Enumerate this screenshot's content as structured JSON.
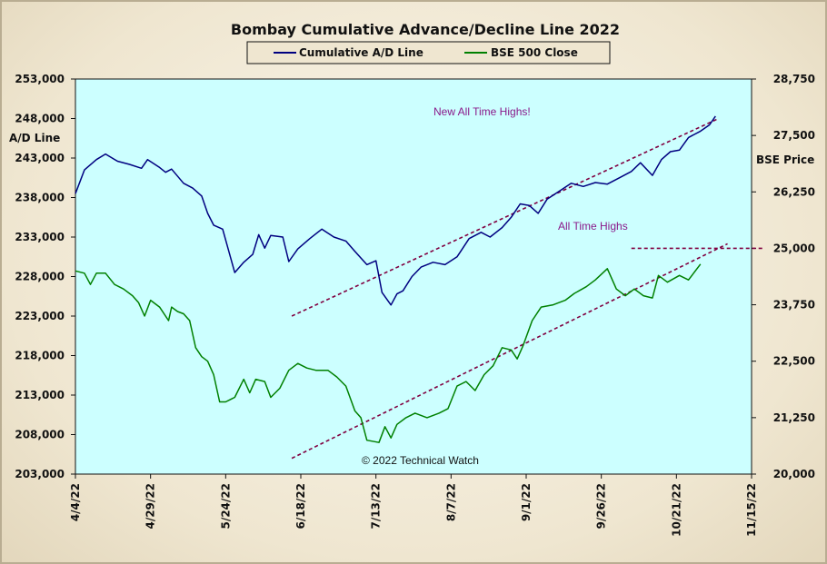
{
  "chart_data": {
    "type": "line",
    "title": "Bombay Cumulative Advance/Decline Line 2022",
    "ylabel": "A/D Line",
    "y2label": "BSE Price",
    "legend": [
      "Cumulative A/D Line",
      "BSE 500 Close"
    ],
    "legend_placement": "top-center",
    "copyright": "© 2022 Technical  Watch",
    "colors": {
      "ad_line": "#000080",
      "bse": "#008000",
      "trend": "#800040",
      "annotation": "#8a1a8a",
      "plot_bg": "#ccffff"
    },
    "x_ticks": [
      "4/4/22",
      "4/29/22",
      "5/24/22",
      "6/18/22",
      "7/13/22",
      "8/7/22",
      "9/1/22",
      "9/26/22",
      "10/21/22",
      "11/15/22"
    ],
    "y_left_ticks": [
      "203,000",
      "208,000",
      "213,000",
      "218,000",
      "223,000",
      "228,000",
      "233,000",
      "238,000",
      "243,000",
      "248,000",
      "253,000"
    ],
    "y_right_ticks": [
      "20,000",
      "21,250",
      "22,500",
      "23,750",
      "25,000",
      "26,250",
      "27,500",
      "28,750"
    ],
    "x_range": [
      "2022-04-04",
      "2022-11-15"
    ],
    "y_left_range": [
      203000,
      253000
    ],
    "y_right_range": [
      20000,
      28750
    ],
    "annotations": [
      "New All Time Highs!",
      "All Time Highs"
    ],
    "series": [
      {
        "name": "Cumulative A/D Line",
        "axis": "left",
        "points": [
          [
            "2022-04-04",
            238500
          ],
          [
            "2022-04-07",
            241500
          ],
          [
            "2022-04-11",
            242800
          ],
          [
            "2022-04-14",
            243500
          ],
          [
            "2022-04-18",
            242600
          ],
          [
            "2022-04-22",
            242200
          ],
          [
            "2022-04-26",
            241700
          ],
          [
            "2022-04-28",
            242800
          ],
          [
            "2022-05-02",
            241800
          ],
          [
            "2022-05-04",
            241200
          ],
          [
            "2022-05-06",
            241600
          ],
          [
            "2022-05-10",
            239800
          ],
          [
            "2022-05-13",
            239200
          ],
          [
            "2022-05-16",
            238200
          ],
          [
            "2022-05-18",
            236000
          ],
          [
            "2022-05-20",
            234500
          ],
          [
            "2022-05-23",
            234000
          ],
          [
            "2022-05-27",
            228500
          ],
          [
            "2022-05-30",
            229800
          ],
          [
            "2022-06-02",
            230800
          ],
          [
            "2022-06-04",
            233300
          ],
          [
            "2022-06-06",
            231600
          ],
          [
            "2022-06-08",
            233200
          ],
          [
            "2022-06-12",
            233000
          ],
          [
            "2022-06-14",
            229900
          ],
          [
            "2022-06-17",
            231500
          ],
          [
            "2022-06-21",
            232800
          ],
          [
            "2022-06-25",
            234000
          ],
          [
            "2022-06-29",
            233000
          ],
          [
            "2022-07-03",
            232500
          ],
          [
            "2022-07-06",
            231200
          ],
          [
            "2022-07-10",
            229500
          ],
          [
            "2022-07-13",
            230000
          ],
          [
            "2022-07-15",
            226000
          ],
          [
            "2022-07-18",
            224400
          ],
          [
            "2022-07-20",
            225800
          ],
          [
            "2022-07-22",
            226200
          ],
          [
            "2022-07-25",
            228000
          ],
          [
            "2022-07-28",
            229200
          ],
          [
            "2022-08-01",
            229800
          ],
          [
            "2022-08-05",
            229500
          ],
          [
            "2022-08-09",
            230500
          ],
          [
            "2022-08-13",
            232800
          ],
          [
            "2022-08-17",
            233600
          ],
          [
            "2022-08-20",
            233000
          ],
          [
            "2022-08-24",
            234200
          ],
          [
            "2022-08-27",
            235500
          ],
          [
            "2022-08-30",
            237200
          ],
          [
            "2022-09-02",
            237000
          ],
          [
            "2022-09-05",
            236000
          ],
          [
            "2022-09-08",
            237800
          ],
          [
            "2022-09-12",
            238800
          ],
          [
            "2022-09-16",
            239800
          ],
          [
            "2022-09-20",
            239400
          ],
          [
            "2022-09-24",
            239900
          ],
          [
            "2022-09-28",
            239700
          ],
          [
            "2022-10-02",
            240500
          ],
          [
            "2022-10-06",
            241300
          ],
          [
            "2022-10-09",
            242400
          ],
          [
            "2022-10-13",
            240800
          ],
          [
            "2022-10-16",
            242800
          ],
          [
            "2022-10-19",
            243800
          ],
          [
            "2022-10-22",
            244000
          ],
          [
            "2022-10-25",
            245600
          ],
          [
            "2022-10-29",
            246400
          ],
          [
            "2022-11-01",
            247200
          ],
          [
            "2022-11-03",
            248300
          ]
        ]
      },
      {
        "name": "BSE 500 Close",
        "axis": "right",
        "points": [
          [
            "2022-04-04",
            24500
          ],
          [
            "2022-04-07",
            24450
          ],
          [
            "2022-04-09",
            24200
          ],
          [
            "2022-04-11",
            24450
          ],
          [
            "2022-04-14",
            24450
          ],
          [
            "2022-04-17",
            24200
          ],
          [
            "2022-04-20",
            24100
          ],
          [
            "2022-04-23",
            23950
          ],
          [
            "2022-04-25",
            23800
          ],
          [
            "2022-04-27",
            23500
          ],
          [
            "2022-04-29",
            23850
          ],
          [
            "2022-05-02",
            23700
          ],
          [
            "2022-05-05",
            23400
          ],
          [
            "2022-05-06",
            23700
          ],
          [
            "2022-05-08",
            23600
          ],
          [
            "2022-05-10",
            23550
          ],
          [
            "2022-05-12",
            23400
          ],
          [
            "2022-05-14",
            22800
          ],
          [
            "2022-05-16",
            22600
          ],
          [
            "2022-05-18",
            22500
          ],
          [
            "2022-05-20",
            22200
          ],
          [
            "2022-05-22",
            21600
          ],
          [
            "2022-05-24",
            21600
          ],
          [
            "2022-05-27",
            21700
          ],
          [
            "2022-05-30",
            22100
          ],
          [
            "2022-06-01",
            21800
          ],
          [
            "2022-06-03",
            22100
          ],
          [
            "2022-06-06",
            22050
          ],
          [
            "2022-06-08",
            21700
          ],
          [
            "2022-06-11",
            21900
          ],
          [
            "2022-06-14",
            22300
          ],
          [
            "2022-06-17",
            22450
          ],
          [
            "2022-06-20",
            22350
          ],
          [
            "2022-06-23",
            22300
          ],
          [
            "2022-06-27",
            22300
          ],
          [
            "2022-06-30",
            22150
          ],
          [
            "2022-07-03",
            21950
          ],
          [
            "2022-07-06",
            21400
          ],
          [
            "2022-07-08",
            21250
          ],
          [
            "2022-07-10",
            20750
          ],
          [
            "2022-07-14",
            20700
          ],
          [
            "2022-07-16",
            21050
          ],
          [
            "2022-07-18",
            20800
          ],
          [
            "2022-07-20",
            21100
          ],
          [
            "2022-07-23",
            21250
          ],
          [
            "2022-07-26",
            21350
          ],
          [
            "2022-07-30",
            21250
          ],
          [
            "2022-08-03",
            21350
          ],
          [
            "2022-08-06",
            21450
          ],
          [
            "2022-08-09",
            21950
          ],
          [
            "2022-08-12",
            22050
          ],
          [
            "2022-08-15",
            21850
          ],
          [
            "2022-08-18",
            22200
          ],
          [
            "2022-08-21",
            22400
          ],
          [
            "2022-08-24",
            22800
          ],
          [
            "2022-08-27",
            22750
          ],
          [
            "2022-08-29",
            22550
          ],
          [
            "2022-08-31",
            22850
          ],
          [
            "2022-09-03",
            23400
          ],
          [
            "2022-09-06",
            23700
          ],
          [
            "2022-09-10",
            23750
          ],
          [
            "2022-09-14",
            23850
          ],
          [
            "2022-09-17",
            24000
          ],
          [
            "2022-09-21",
            24150
          ],
          [
            "2022-09-24",
            24300
          ],
          [
            "2022-09-28",
            24550
          ],
          [
            "2022-10-01",
            24100
          ],
          [
            "2022-10-04",
            23950
          ],
          [
            "2022-10-07",
            24100
          ],
          [
            "2022-10-10",
            23950
          ],
          [
            "2022-10-13",
            23900
          ],
          [
            "2022-10-15",
            24400
          ],
          [
            "2022-10-18",
            24250
          ],
          [
            "2022-10-22",
            24400
          ],
          [
            "2022-10-25",
            24300
          ],
          [
            "2022-10-29",
            24650
          ]
        ]
      }
    ],
    "trendlines": [
      {
        "axis": "left",
        "from": [
          "2022-06-15",
          223000
        ],
        "to": [
          "2022-11-04",
          248000
        ]
      },
      {
        "axis": "right",
        "from": [
          "2022-06-15",
          20350
        ],
        "to": [
          "2022-11-07",
          25100
        ]
      },
      {
        "axis": "right",
        "from": [
          "2022-10-06",
          25000
        ],
        "to": [
          "2022-11-19",
          25000
        ]
      }
    ]
  }
}
